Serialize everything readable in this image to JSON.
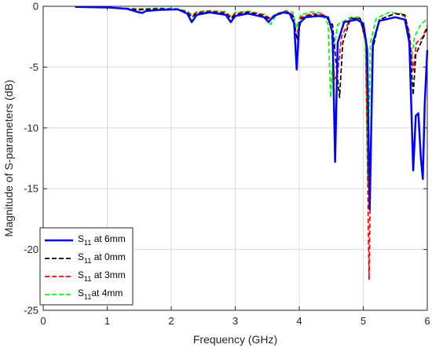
{
  "chart_data": {
    "type": "line",
    "title": "",
    "xlabel": "Frequency (GHz)",
    "ylabel": "Magnitude of S-parameters (dB)",
    "xlim": [
      0,
      6
    ],
    "ylim": [
      -25,
      0
    ],
    "xticks": [
      0,
      1,
      2,
      3,
      4,
      5,
      6
    ],
    "yticks": [
      0,
      -5,
      -10,
      -15,
      -20,
      -25
    ],
    "xtick_labels": [
      "0",
      "1",
      "2",
      "3",
      "4",
      "5",
      "6"
    ],
    "ytick_labels": [
      "0",
      "-5",
      "-10",
      "-15",
      "-20",
      "-25"
    ],
    "grid": true,
    "legend_position": "bottom-left",
    "series": [
      {
        "name": "S11 at 6mm",
        "legend_main": "S",
        "legend_sub": "11",
        "legend_rest": " at 6mm",
        "color": "#0000ff",
        "style": "solid",
        "points": [
          [
            0.5,
            -0.05
          ],
          [
            1.0,
            -0.1
          ],
          [
            1.3,
            -0.2
          ],
          [
            1.5,
            -0.5
          ],
          [
            1.55,
            -0.55
          ],
          [
            1.6,
            -0.4
          ],
          [
            1.8,
            -0.3
          ],
          [
            2.1,
            -0.25
          ],
          [
            2.25,
            -0.6
          ],
          [
            2.32,
            -1.3
          ],
          [
            2.4,
            -0.7
          ],
          [
            2.6,
            -0.5
          ],
          [
            2.85,
            -0.7
          ],
          [
            2.93,
            -1.3
          ],
          [
            3.0,
            -0.8
          ],
          [
            3.2,
            -0.6
          ],
          [
            3.45,
            -0.9
          ],
          [
            3.52,
            -1.3
          ],
          [
            3.6,
            -0.8
          ],
          [
            3.75,
            -0.5
          ],
          [
            3.85,
            -0.6
          ],
          [
            3.92,
            -1.4
          ],
          [
            3.96,
            -5.2
          ],
          [
            4.0,
            -1.4
          ],
          [
            4.1,
            -0.9
          ],
          [
            4.3,
            -0.8
          ],
          [
            4.45,
            -0.9
          ],
          [
            4.52,
            -2.2
          ],
          [
            4.56,
            -12.8
          ],
          [
            4.6,
            -3.0
          ],
          [
            4.7,
            -1.3
          ],
          [
            4.9,
            -1.1
          ],
          [
            5.0,
            -1.4
          ],
          [
            5.06,
            -3.5
          ],
          [
            5.1,
            -16.7
          ],
          [
            5.15,
            -3.0
          ],
          [
            5.25,
            -1.2
          ],
          [
            5.5,
            -0.9
          ],
          [
            5.65,
            -1.1
          ],
          [
            5.72,
            -3.0
          ],
          [
            5.78,
            -13.5
          ],
          [
            5.82,
            -9.0
          ],
          [
            5.86,
            -8.8
          ],
          [
            5.9,
            -12.5
          ],
          [
            5.93,
            -14.2
          ],
          [
            5.96,
            -8.0
          ],
          [
            6.0,
            -3.6
          ]
        ]
      },
      {
        "name": "S11 at 0mm",
        "legend_main": "S",
        "legend_sub": "11",
        "legend_rest": " at 0mm",
        "color": "#000000",
        "style": "dashed",
        "points": [
          [
            0.5,
            -0.05
          ],
          [
            1.0,
            -0.1
          ],
          [
            1.5,
            -0.3
          ],
          [
            1.8,
            -0.2
          ],
          [
            2.1,
            -0.25
          ],
          [
            2.25,
            -0.5
          ],
          [
            2.32,
            -0.9
          ],
          [
            2.4,
            -0.6
          ],
          [
            2.6,
            -0.45
          ],
          [
            2.85,
            -0.6
          ],
          [
            2.93,
            -1.0
          ],
          [
            3.0,
            -0.7
          ],
          [
            3.2,
            -0.5
          ],
          [
            3.45,
            -0.8
          ],
          [
            3.55,
            -1.1
          ],
          [
            3.65,
            -0.7
          ],
          [
            3.8,
            -0.5
          ],
          [
            3.9,
            -0.8
          ],
          [
            3.97,
            -2.8
          ],
          [
            4.03,
            -1.0
          ],
          [
            4.2,
            -0.7
          ],
          [
            4.4,
            -0.8
          ],
          [
            4.52,
            -1.5
          ],
          [
            4.58,
            -5.0
          ],
          [
            4.63,
            -7.5
          ],
          [
            4.68,
            -3.0
          ],
          [
            4.8,
            -1.0
          ],
          [
            4.95,
            -1.0
          ],
          [
            5.05,
            -3.0
          ],
          [
            5.1,
            -16.5
          ],
          [
            5.15,
            -3.5
          ],
          [
            5.25,
            -1.1
          ],
          [
            5.5,
            -0.6
          ],
          [
            5.65,
            -0.7
          ],
          [
            5.72,
            -2.5
          ],
          [
            5.78,
            -7.3
          ],
          [
            5.82,
            -4.0
          ],
          [
            5.9,
            -3.0
          ],
          [
            6.0,
            -1.8
          ]
        ]
      },
      {
        "name": "S11 at 3mm",
        "legend_main": "S",
        "legend_sub": "11",
        "legend_rest": " at 3mm",
        "color": "#ff0000",
        "style": "dashed",
        "points": [
          [
            0.5,
            -0.05
          ],
          [
            1.0,
            -0.1
          ],
          [
            1.5,
            -0.25
          ],
          [
            1.8,
            -0.2
          ],
          [
            2.1,
            -0.25
          ],
          [
            2.25,
            -0.45
          ],
          [
            2.32,
            -0.8
          ],
          [
            2.4,
            -0.5
          ],
          [
            2.6,
            -0.4
          ],
          [
            2.85,
            -0.5
          ],
          [
            2.93,
            -0.9
          ],
          [
            3.0,
            -0.6
          ],
          [
            3.2,
            -0.45
          ],
          [
            3.45,
            -0.7
          ],
          [
            3.55,
            -1.0
          ],
          [
            3.65,
            -0.6
          ],
          [
            3.8,
            -0.4
          ],
          [
            3.9,
            -0.7
          ],
          [
            3.96,
            -2.5
          ],
          [
            4.02,
            -0.9
          ],
          [
            4.2,
            -0.6
          ],
          [
            4.4,
            -0.7
          ],
          [
            4.5,
            -1.5
          ],
          [
            4.55,
            -6.0
          ],
          [
            4.6,
            -5.5
          ],
          [
            4.66,
            -2.5
          ],
          [
            4.8,
            -1.0
          ],
          [
            4.95,
            -1.0
          ],
          [
            5.04,
            -3.0
          ],
          [
            5.09,
            -22.5
          ],
          [
            5.14,
            -3.5
          ],
          [
            5.25,
            -1.1
          ],
          [
            5.5,
            -0.6
          ],
          [
            5.65,
            -0.8
          ],
          [
            5.72,
            -2.2
          ],
          [
            5.78,
            -5.3
          ],
          [
            5.83,
            -3.0
          ],
          [
            5.92,
            -2.6
          ],
          [
            6.0,
            -1.6
          ]
        ]
      },
      {
        "name": "S11 at 4mm",
        "legend_main": "S",
        "legend_sub": "11",
        "legend_rest": "at 4mm",
        "color": "#00ff00",
        "style": "dashed",
        "points": [
          [
            0.5,
            -0.05
          ],
          [
            1.0,
            -0.1
          ],
          [
            1.5,
            -0.2
          ],
          [
            1.8,
            -0.15
          ],
          [
            2.1,
            -0.2
          ],
          [
            2.25,
            -0.4
          ],
          [
            2.32,
            -0.7
          ],
          [
            2.4,
            -0.45
          ],
          [
            2.6,
            -0.35
          ],
          [
            2.85,
            -0.45
          ],
          [
            2.93,
            -0.8
          ],
          [
            3.0,
            -0.5
          ],
          [
            3.2,
            -0.4
          ],
          [
            3.45,
            -0.65
          ],
          [
            3.55,
            -1.5
          ],
          [
            3.65,
            -0.6
          ],
          [
            3.8,
            -0.35
          ],
          [
            3.9,
            -0.5
          ],
          [
            3.96,
            -1.8
          ],
          [
            4.02,
            -0.7
          ],
          [
            4.2,
            -0.45
          ],
          [
            4.35,
            -0.55
          ],
          [
            4.45,
            -1.5
          ],
          [
            4.49,
            -7.5
          ],
          [
            4.53,
            -4.0
          ],
          [
            4.6,
            -1.5
          ],
          [
            4.8,
            -0.9
          ],
          [
            4.95,
            -0.9
          ],
          [
            5.03,
            -2.5
          ],
          [
            5.07,
            -14.5
          ],
          [
            5.11,
            -3.0
          ],
          [
            5.2,
            -1.0
          ],
          [
            5.4,
            -0.5
          ],
          [
            5.6,
            -0.6
          ],
          [
            5.7,
            -1.8
          ],
          [
            5.75,
            -4.5
          ],
          [
            5.8,
            -2.5
          ],
          [
            5.9,
            -1.5
          ],
          [
            6.0,
            -1.0
          ]
        ]
      }
    ]
  }
}
